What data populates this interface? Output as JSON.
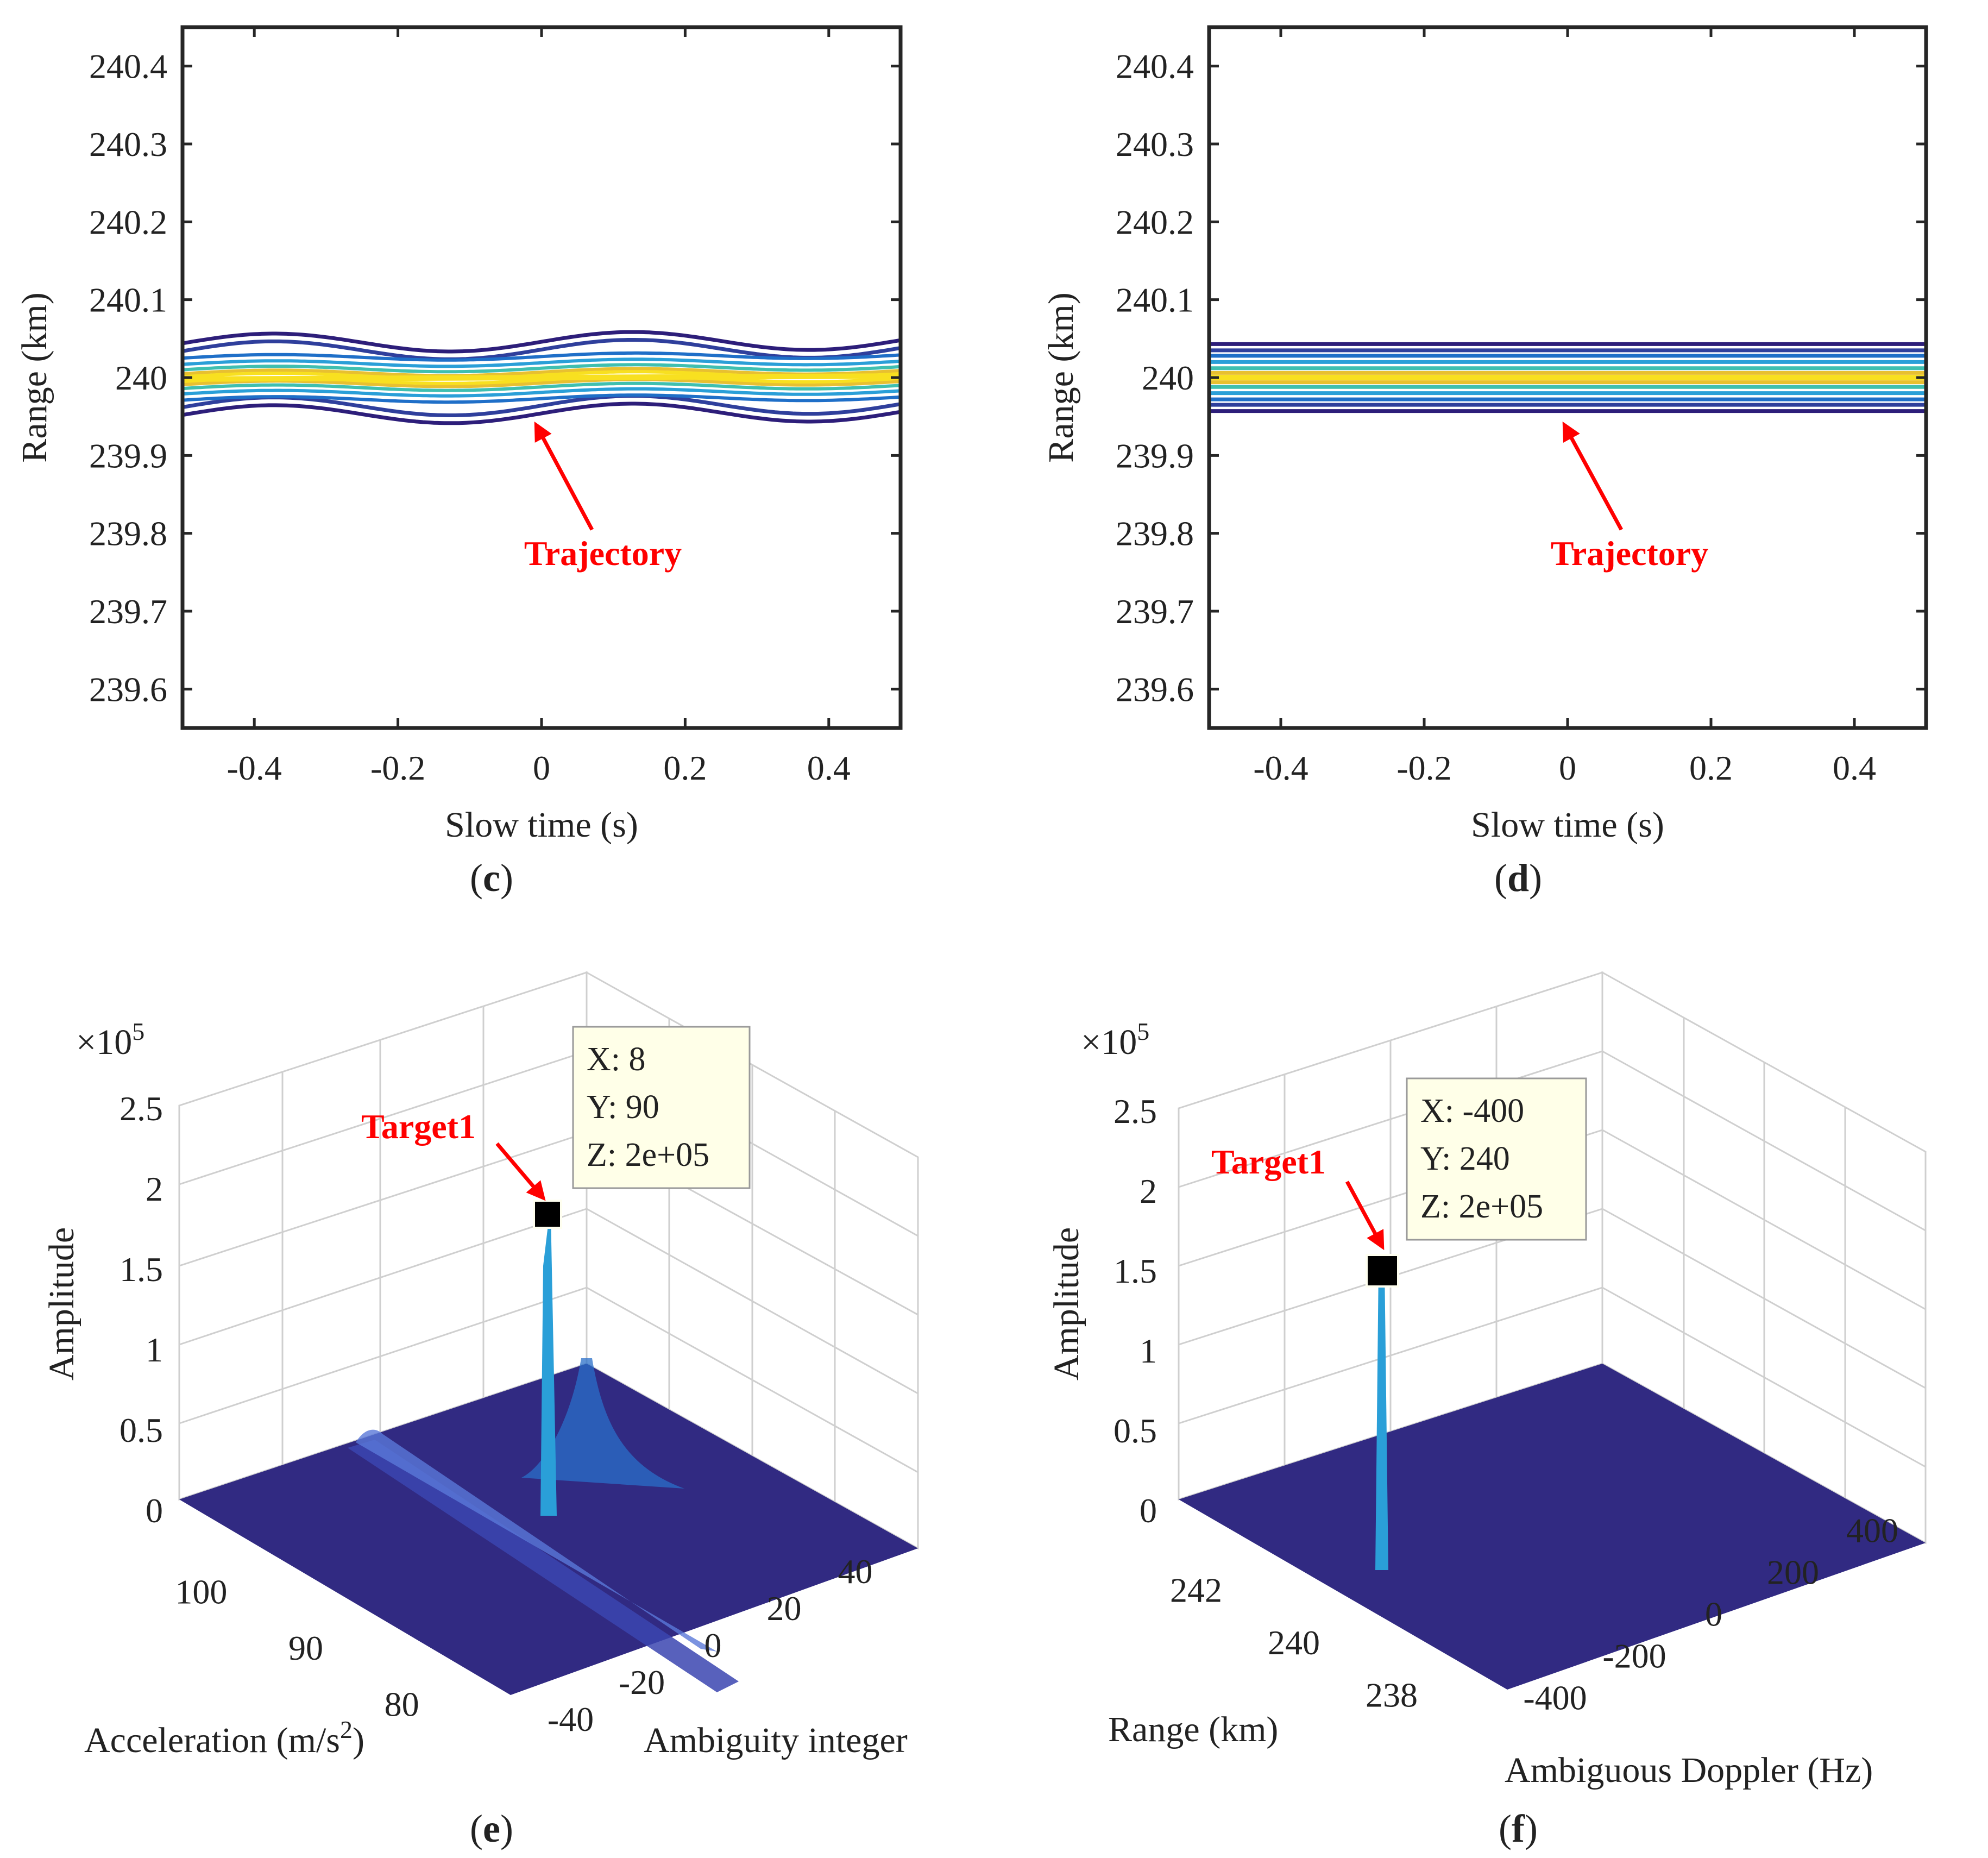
{
  "colors": {
    "arrow": "#ff0000",
    "contour_levels": [
      "#2d1e7a",
      "#2f3f9c",
      "#1f6fc8",
      "#2a9fd8",
      "#3fbfb0",
      "#e8c030",
      "#f8e020"
    ],
    "surface": "#312a82",
    "marker": "#000000",
    "tip_bg": "#ffffe8"
  },
  "chart_data": [
    {
      "panel": "c",
      "type": "contour",
      "panel_label": "c",
      "xlabel": "Slow time (s)",
      "ylabel": "Range (km)",
      "xlim": [
        -0.5,
        0.5
      ],
      "ylim": [
        239.55,
        240.45
      ],
      "xticks": [
        "-0.4",
        "-0.2",
        "0",
        "0.2",
        "0.4"
      ],
      "xtick_values": [
        -0.4,
        -0.2,
        0,
        0.2,
        0.4
      ],
      "yticks": [
        "239.6",
        "239.7",
        "239.8",
        "239.9",
        "240",
        "240.1",
        "240.2",
        "240.3",
        "240.4"
      ],
      "ytick_values": [
        239.6,
        239.7,
        239.8,
        239.9,
        240,
        240.1,
        240.2,
        240.3,
        240.4
      ],
      "trajectory": {
        "x": [
          -0.5,
          0.5
        ],
        "y": [
          239.998,
          240.002
        ]
      },
      "annotation": {
        "text": "Trajectory",
        "arrow_tip": [
          0,
          239.965
        ]
      },
      "grid": false
    },
    {
      "panel": "d",
      "type": "contour",
      "panel_label": "d",
      "xlabel": "Slow time (s)",
      "ylabel": "Range (km)",
      "xlim": [
        -0.5,
        0.5
      ],
      "ylim": [
        239.55,
        240.45
      ],
      "xticks": [
        "-0.4",
        "-0.2",
        "0",
        "0.2",
        "0.4"
      ],
      "xtick_values": [
        -0.4,
        -0.2,
        0,
        0.2,
        0.4
      ],
      "yticks": [
        "239.6",
        "239.7",
        "239.8",
        "239.9",
        "240",
        "240.1",
        "240.2",
        "240.3",
        "240.4"
      ],
      "ytick_values": [
        239.6,
        239.7,
        239.8,
        239.9,
        240,
        240.1,
        240.2,
        240.3,
        240.4
      ],
      "trajectory": {
        "x": [
          -0.5,
          0.5
        ],
        "y": [
          240.0,
          240.0
        ]
      },
      "contour_offsets_km": [
        0.043,
        0.035,
        0.028,
        0.02,
        0.012,
        0.006,
        0
      ],
      "annotation": {
        "text": "Trajectory",
        "arrow_tip": [
          0,
          239.965
        ]
      },
      "grid": false
    },
    {
      "panel": "e",
      "type": "surface3d",
      "panel_label": "e",
      "xlabel": "Ambiguity integer",
      "ylabel": "Acceleration (m/s",
      "ylabel_sup": "2",
      "ylabel_tail": ")",
      "zlabel": "Amplitude",
      "z_exponent": "×10",
      "z_exponent_power": "5",
      "zlim": [
        0,
        2.5
      ],
      "zticks": [
        "0",
        "0.5",
        "1",
        "1.5",
        "2",
        "2.5"
      ],
      "xticks": [
        "-40",
        "-20",
        "0",
        "20",
        "40"
      ],
      "yticks": [
        "80",
        "90",
        "100"
      ],
      "peak": {
        "x": 8,
        "y": 90,
        "z": 200000
      },
      "datatip": [
        "X: 8",
        "Y: 90",
        "Z: 2e+05"
      ],
      "annotation": {
        "text": "Target1"
      },
      "grid": true
    },
    {
      "panel": "f",
      "type": "surface3d",
      "panel_label": "f",
      "xlabel": "Ambiguous Doppler (Hz)",
      "ylabel": "Range (km)",
      "zlabel": "Amplitude",
      "z_exponent": "×10",
      "z_exponent_power": "5",
      "zlim": [
        0,
        2.5
      ],
      "zticks": [
        "0",
        "0.5",
        "1",
        "1.5",
        "2",
        "2.5"
      ],
      "xticks": [
        "-400",
        "-200",
        "0",
        "200",
        "400"
      ],
      "yticks": [
        "238",
        "240",
        "242"
      ],
      "peak": {
        "x": -400,
        "y": 240,
        "z": 200000
      },
      "datatip": [
        "X: -400",
        "Y: 240",
        "Z: 2e+05"
      ],
      "annotation": {
        "text": "Target1"
      },
      "grid": true
    }
  ]
}
